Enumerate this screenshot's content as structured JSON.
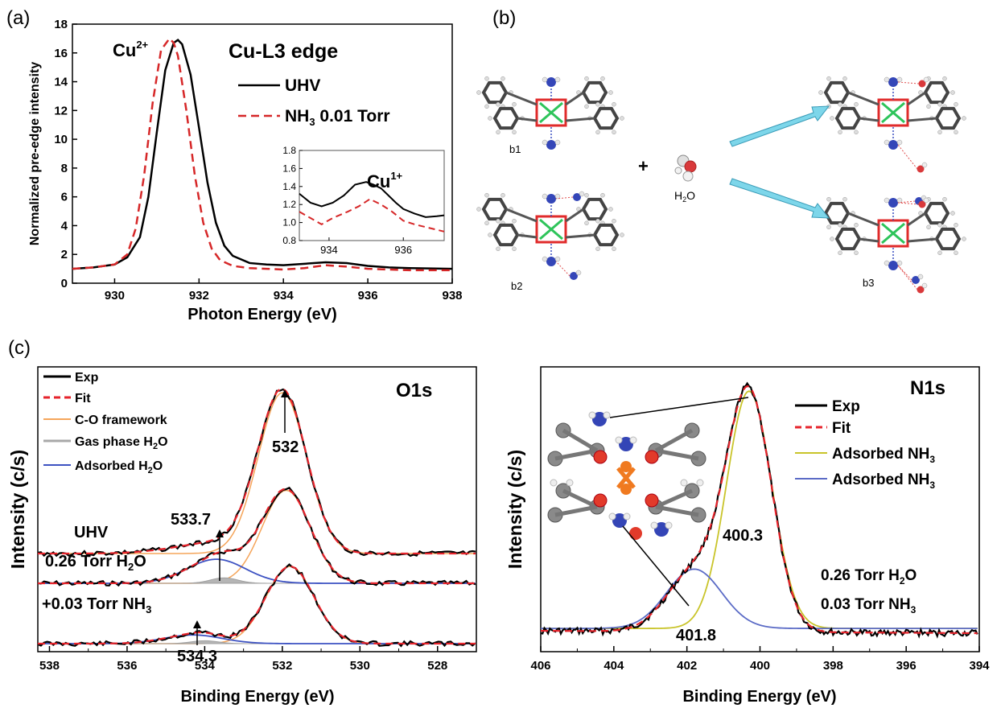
{
  "panel_labels": {
    "a": "(a)",
    "b": "(b)",
    "c": "(c)"
  },
  "panel_a": {
    "title": "Cu-L3 edge",
    "ylabel": "Normalized pre-edge intensity",
    "xlabel": "Photon Energy (eV)",
    "legend": [
      {
        "label": "UHV",
        "color": "#000000",
        "style": "solid"
      },
      {
        "label": "NH3 0.01 Torr",
        "color": "#d62728",
        "style": "dashed"
      }
    ],
    "annotations": {
      "cu2": "Cu2+",
      "cu1": "Cu1+"
    }
  },
  "panel_b": {
    "labels": {
      "b1": "b1",
      "b2": "b2",
      "b3": "b3",
      "water": "H2O",
      "plus": "+"
    }
  },
  "panel_c_o1s": {
    "title": "O1s",
    "ylabel": "Intensity (c/s)",
    "xlabel": "Binding Energy (eV)",
    "legend": [
      {
        "label": "Exp",
        "color": "#000000"
      },
      {
        "label": "Fit",
        "color": "#e6232b"
      },
      {
        "label": "C-O framework",
        "color": "#f5a55a"
      },
      {
        "label": "Gas phase H2O",
        "color": "#a8a8a8"
      },
      {
        "label": "Adsorbed H2O",
        "color": "#3d52c2"
      }
    ],
    "spectrum_labels": [
      "UHV",
      "0.26 Torr H2O",
      "+0.03 Torr NH3"
    ],
    "peak_labels": [
      "532",
      "533.7",
      "534.3"
    ]
  },
  "panel_c_n1s": {
    "title": "N1s",
    "ylabel": "Intensity (c/s)",
    "xlabel": "Binding Energy (eV)",
    "legend": [
      {
        "label": "Exp",
        "color": "#000000"
      },
      {
        "label": "Fit",
        "color": "#e6232b"
      },
      {
        "label": "Adsorbed NH3",
        "color": "#c9c42a"
      },
      {
        "label": "Adsorbed NH3",
        "color": "#5b6bc6"
      }
    ],
    "conditions": [
      "0.26 Torr H2O",
      "0.03 Torr NH3"
    ],
    "peak_labels": [
      "400.3",
      "401.8"
    ]
  },
  "chart_data": [
    {
      "type": "line",
      "panel": "a",
      "title": "Cu-L3 edge",
      "xlabel": "Photon Energy (eV)",
      "ylabel": "Normalized pre-edge intensity",
      "xlim": [
        929,
        938
      ],
      "ylim": [
        0,
        18
      ],
      "xticks": [
        930,
        932,
        934,
        936,
        938
      ],
      "yticks": [
        0,
        2,
        4,
        6,
        8,
        10,
        12,
        14,
        16,
        18
      ],
      "series": [
        {
          "name": "UHV",
          "color": "#000000",
          "dash": false,
          "x": [
            929,
            929.5,
            930,
            930.3,
            930.6,
            930.8,
            931.0,
            931.2,
            931.4,
            931.5,
            931.6,
            931.8,
            932.0,
            932.2,
            932.4,
            932.6,
            932.8,
            933.2,
            933.6,
            934.0,
            934.5,
            935.0,
            935.5,
            936.0,
            936.5,
            937.0,
            938.0
          ],
          "y": [
            1.0,
            1.1,
            1.3,
            1.8,
            3.2,
            6.0,
            10.5,
            14.8,
            16.7,
            16.9,
            16.6,
            14.5,
            10.8,
            7.0,
            4.2,
            2.6,
            1.9,
            1.4,
            1.3,
            1.25,
            1.35,
            1.45,
            1.4,
            1.2,
            1.1,
            1.05,
            1.0
          ]
        },
        {
          "name": "NH3 0.01 Torr",
          "color": "#d62728",
          "dash": true,
          "x": [
            929,
            929.5,
            930,
            930.3,
            930.5,
            930.7,
            930.9,
            931.1,
            931.3,
            931.4,
            931.5,
            931.7,
            931.9,
            932.1,
            932.3,
            932.5,
            932.8,
            933.2,
            933.6,
            934.0,
            934.5,
            935.0,
            935.5,
            936.0,
            936.5,
            937.0,
            938.0
          ],
          "y": [
            1.0,
            1.1,
            1.3,
            2.0,
            3.8,
            7.5,
            12.5,
            16.2,
            17.0,
            16.7,
            15.8,
            12.0,
            7.5,
            4.2,
            2.4,
            1.6,
            1.2,
            1.05,
            1.0,
            0.95,
            1.05,
            1.25,
            1.15,
            1.0,
            0.95,
            0.9,
            0.9
          ]
        }
      ]
    },
    {
      "type": "line",
      "panel": "a-inset",
      "xlim": [
        933.2,
        937.1
      ],
      "ylim": [
        0.8,
        1.8
      ],
      "xticks": [
        934,
        936
      ],
      "yticks": [
        0.8,
        1.0,
        1.2,
        1.4,
        1.6,
        1.8
      ],
      "series": [
        {
          "name": "UHV",
          "color": "#000000",
          "dash": false,
          "x": [
            933.2,
            933.5,
            933.8,
            934.1,
            934.4,
            934.7,
            935.0,
            935.2,
            935.4,
            935.6,
            935.8,
            936.0,
            936.3,
            936.6,
            936.9,
            937.1
          ],
          "y": [
            1.32,
            1.22,
            1.18,
            1.22,
            1.3,
            1.42,
            1.45,
            1.42,
            1.38,
            1.3,
            1.22,
            1.15,
            1.1,
            1.06,
            1.07,
            1.08
          ]
        },
        {
          "name": "NH3 0.01 Torr",
          "color": "#d62728",
          "dash": true,
          "x": [
            933.2,
            933.5,
            933.8,
            934.1,
            934.5,
            934.8,
            935.1,
            935.4,
            935.7,
            936.0,
            936.3,
            936.6,
            936.9,
            937.1
          ],
          "y": [
            1.12,
            1.05,
            0.98,
            1.05,
            1.12,
            1.18,
            1.26,
            1.2,
            1.12,
            1.02,
            0.98,
            0.95,
            0.92,
            0.9
          ]
        }
      ]
    },
    {
      "type": "line",
      "panel": "c-O1s",
      "title": "O1s",
      "xlabel": "Binding Energy (eV)",
      "ylabel": "Intensity (c/s)",
      "xlim": [
        538.3,
        527
      ],
      "xticks": [
        538,
        536,
        534,
        532,
        530,
        528
      ],
      "stacked_offsets": [
        2.0,
        1.0,
        0.0
      ],
      "series": [
        {
          "name": "UHV",
          "components": {
            "framework_center": 532,
            "framework_height": 1.0,
            "baseline": 0.2
          }
        },
        {
          "name": "0.26 Torr H2O",
          "components": {
            "framework_center": 531.9,
            "framework_height": 0.85,
            "adsorbed_center": 533.7,
            "adsorbed_height": 0.22,
            "gas_center": 533.5,
            "gas_height": 0.05
          }
        },
        {
          "name": "+0.03 Torr NH3",
          "components": {
            "framework_center": 531.8,
            "framework_height": 0.8,
            "adsorbed_center": 534.3,
            "adsorbed_height": 0.09,
            "gas_center": 534.0,
            "gas_height": 0.03
          }
        }
      ]
    },
    {
      "type": "line",
      "panel": "c-N1s",
      "title": "N1s",
      "xlabel": "Binding Energy (eV)",
      "ylabel": "Intensity (c/s)",
      "xlim": [
        406,
        394
      ],
      "xticks": [
        406,
        404,
        402,
        400,
        398,
        396,
        394
      ],
      "series": [
        {
          "name": "Adsorbed NH3",
          "center": 400.3,
          "height": 1.0,
          "color": "#c9c42a"
        },
        {
          "name": "Adsorbed NH3",
          "center": 401.8,
          "height": 0.25,
          "color": "#5b6bc6"
        }
      ]
    }
  ]
}
